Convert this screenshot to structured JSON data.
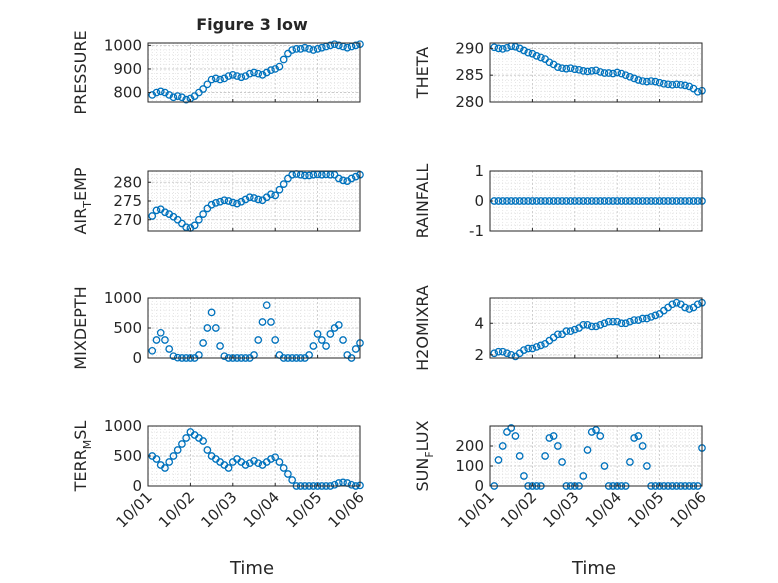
{
  "figure": {
    "title": "Figure 3 low"
  },
  "chart_data": [
    {
      "type": "scatter",
      "ylabel": "PRESSURE",
      "ylim": [
        760,
        1010
      ],
      "yticks": [
        800,
        900,
        1000
      ],
      "ytick_labels": [
        "800",
        "900",
        "1000"
      ],
      "xlim": [
        0,
        5
      ],
      "grid": true,
      "marker": "circle",
      "color": "#0072BD",
      "series": [
        {
          "x": [
            0.1,
            0.2,
            0.3,
            0.4,
            0.5,
            0.6,
            0.7,
            0.8,
            0.9,
            1.0,
            1.1,
            1.2,
            1.3,
            1.4,
            1.5,
            1.6,
            1.7,
            1.8,
            1.9,
            2.0,
            2.1,
            2.2,
            2.3,
            2.4,
            2.5,
            2.6,
            2.7,
            2.8,
            2.9,
            3.0,
            3.1,
            3.2,
            3.3,
            3.4,
            3.5,
            3.6,
            3.7,
            3.8,
            3.9,
            4.0,
            4.1,
            4.2,
            4.3,
            4.4,
            4.5,
            4.6,
            4.7,
            4.8,
            4.9,
            5.0
          ],
          "y": [
            790,
            800,
            805,
            800,
            790,
            780,
            785,
            780,
            770,
            775,
            785,
            800,
            815,
            835,
            855,
            860,
            855,
            860,
            870,
            875,
            870,
            865,
            870,
            880,
            885,
            880,
            875,
            885,
            895,
            900,
            910,
            940,
            965,
            980,
            985,
            985,
            990,
            985,
            980,
            985,
            990,
            995,
            1000,
            1005,
            1000,
            995,
            990,
            995,
            1000,
            1005
          ]
        }
      ]
    },
    {
      "type": "scatter",
      "ylabel": "THETA",
      "ylim": [
        280,
        291
      ],
      "yticks": [
        280,
        285,
        290
      ],
      "ytick_labels": [
        "280",
        "285",
        "290"
      ],
      "xlim": [
        0,
        5
      ],
      "grid": true,
      "marker": "circle",
      "color": "#0072BD",
      "series": [
        {
          "x": [
            0.1,
            0.2,
            0.3,
            0.4,
            0.5,
            0.6,
            0.7,
            0.8,
            0.9,
            1.0,
            1.1,
            1.2,
            1.3,
            1.4,
            1.5,
            1.6,
            1.7,
            1.8,
            1.9,
            2.0,
            2.1,
            2.2,
            2.3,
            2.4,
            2.5,
            2.6,
            2.7,
            2.8,
            2.9,
            3.0,
            3.1,
            3.2,
            3.3,
            3.4,
            3.5,
            3.6,
            3.7,
            3.8,
            3.9,
            4.0,
            4.1,
            4.2,
            4.3,
            4.4,
            4.5,
            4.6,
            4.7,
            4.8,
            4.9,
            5.0
          ],
          "y": [
            290.2,
            290.0,
            289.9,
            290.1,
            290.4,
            290.3,
            290.0,
            289.6,
            289.2,
            289.0,
            288.6,
            288.3,
            288.0,
            287.4,
            287.0,
            286.5,
            286.3,
            286.2,
            286.3,
            286.1,
            286.0,
            285.8,
            285.7,
            285.8,
            285.9,
            285.6,
            285.4,
            285.4,
            285.3,
            285.5,
            285.3,
            285.0,
            284.7,
            284.4,
            284.1,
            283.9,
            283.8,
            283.9,
            283.8,
            283.6,
            283.4,
            283.3,
            283.2,
            283.3,
            283.2,
            283.1,
            282.9,
            282.5,
            281.9,
            282.1
          ]
        }
      ]
    },
    {
      "type": "scatter",
      "ylabel": "AIR",
      "ylabel_sub": "T",
      "ylabel_rest": "EMP",
      "ylim": [
        267,
        283
      ],
      "yticks": [
        270,
        275,
        280
      ],
      "ytick_labels": [
        "270",
        "275",
        "280"
      ],
      "xlim": [
        0,
        5
      ],
      "grid": true,
      "marker": "circle",
      "color": "#0072BD",
      "series": [
        {
          "x": [
            0.1,
            0.2,
            0.3,
            0.4,
            0.5,
            0.6,
            0.7,
            0.8,
            0.9,
            1.0,
            1.1,
            1.2,
            1.3,
            1.4,
            1.5,
            1.6,
            1.7,
            1.8,
            1.9,
            2.0,
            2.1,
            2.2,
            2.3,
            2.4,
            2.5,
            2.6,
            2.7,
            2.8,
            2.9,
            3.0,
            3.1,
            3.2,
            3.3,
            3.4,
            3.5,
            3.6,
            3.7,
            3.8,
            3.9,
            4.0,
            4.1,
            4.2,
            4.3,
            4.4,
            4.5,
            4.6,
            4.7,
            4.8,
            4.9,
            5.0
          ],
          "y": [
            271.0,
            272.5,
            272.8,
            272.0,
            271.5,
            270.8,
            270.0,
            269.0,
            268.0,
            267.8,
            268.5,
            270.0,
            271.5,
            273.0,
            274.0,
            274.5,
            274.8,
            275.2,
            275.0,
            274.6,
            274.3,
            274.8,
            275.4,
            276.0,
            275.8,
            275.4,
            275.2,
            276.0,
            276.8,
            276.5,
            278.0,
            279.5,
            281.0,
            282.0,
            282.2,
            282.0,
            281.8,
            281.8,
            282.0,
            282.1,
            282.0,
            282.1,
            282.0,
            282.0,
            281.0,
            280.5,
            280.3,
            281.0,
            281.5,
            282.0
          ]
        }
      ]
    },
    {
      "type": "scatter",
      "ylabel": "RAINFALL",
      "ylim": [
        -1,
        1
      ],
      "yticks": [
        -1,
        0,
        1
      ],
      "ytick_labels": [
        "-1",
        "0",
        "1"
      ],
      "xlim": [
        0,
        5
      ],
      "grid": true,
      "marker": "circle",
      "color": "#0072BD",
      "series": [
        {
          "x": [
            0.1,
            0.2,
            0.3,
            0.4,
            0.5,
            0.6,
            0.7,
            0.8,
            0.9,
            1.0,
            1.1,
            1.2,
            1.3,
            1.4,
            1.5,
            1.6,
            1.7,
            1.8,
            1.9,
            2.0,
            2.1,
            2.2,
            2.3,
            2.4,
            2.5,
            2.6,
            2.7,
            2.8,
            2.9,
            3.0,
            3.1,
            3.2,
            3.3,
            3.4,
            3.5,
            3.6,
            3.7,
            3.8,
            3.9,
            4.0,
            4.1,
            4.2,
            4.3,
            4.4,
            4.5,
            4.6,
            4.7,
            4.8,
            4.9,
            5.0
          ],
          "y": [
            0,
            0,
            0,
            0,
            0,
            0,
            0,
            0,
            0,
            0,
            0,
            0,
            0,
            0,
            0,
            0,
            0,
            0,
            0,
            0,
            0,
            0,
            0,
            0,
            0,
            0,
            0,
            0,
            0,
            0,
            0,
            0,
            0,
            0,
            0,
            0,
            0,
            0,
            0,
            0,
            0,
            0,
            0,
            0,
            0,
            0,
            0,
            0,
            0,
            0
          ]
        }
      ]
    },
    {
      "type": "scatter",
      "ylabel": "MIXDEPTH",
      "ylim": [
        0,
        1000
      ],
      "yticks": [
        0,
        500,
        1000
      ],
      "ytick_labels": [
        "0",
        "500",
        "1000"
      ],
      "xlim": [
        0,
        5
      ],
      "grid": true,
      "marker": "circle",
      "color": "#0072BD",
      "series": [
        {
          "x": [
            0.1,
            0.2,
            0.3,
            0.4,
            0.5,
            0.6,
            0.7,
            0.8,
            0.9,
            1.0,
            1.1,
            1.2,
            1.3,
            1.4,
            1.5,
            1.6,
            1.7,
            1.8,
            1.9,
            2.0,
            2.1,
            2.2,
            2.3,
            2.4,
            2.5,
            2.6,
            2.7,
            2.8,
            2.9,
            3.0,
            3.1,
            3.2,
            3.3,
            3.4,
            3.5,
            3.6,
            3.7,
            3.8,
            3.9,
            4.0,
            4.1,
            4.2,
            4.3,
            4.4,
            4.5,
            4.6,
            4.7,
            4.8,
            4.9,
            5.0
          ],
          "y": [
            120,
            300,
            420,
            300,
            150,
            30,
            5,
            0,
            0,
            0,
            0,
            50,
            250,
            500,
            760,
            500,
            200,
            30,
            0,
            0,
            0,
            0,
            0,
            0,
            50,
            300,
            600,
            880,
            600,
            300,
            50,
            0,
            0,
            0,
            0,
            0,
            0,
            50,
            200,
            400,
            300,
            200,
            400,
            500,
            550,
            300,
            50,
            0,
            150,
            250
          ]
        }
      ]
    },
    {
      "type": "scatter",
      "ylabel": "H2OMIXRA",
      "ylim": [
        1.8,
        5.6
      ],
      "yticks": [
        2,
        4
      ],
      "ytick_labels": [
        "2",
        "4"
      ],
      "xlim": [
        0,
        5
      ],
      "grid": true,
      "marker": "circle",
      "color": "#0072BD",
      "series": [
        {
          "x": [
            0.1,
            0.2,
            0.3,
            0.4,
            0.5,
            0.6,
            0.7,
            0.8,
            0.9,
            1.0,
            1.1,
            1.2,
            1.3,
            1.4,
            1.5,
            1.6,
            1.7,
            1.8,
            1.9,
            2.0,
            2.1,
            2.2,
            2.3,
            2.4,
            2.5,
            2.6,
            2.7,
            2.8,
            2.9,
            3.0,
            3.1,
            3.2,
            3.3,
            3.4,
            3.5,
            3.6,
            3.7,
            3.8,
            3.9,
            4.0,
            4.1,
            4.2,
            4.3,
            4.4,
            4.5,
            4.6,
            4.7,
            4.8,
            4.9,
            5.0
          ],
          "y": [
            2.1,
            2.2,
            2.2,
            2.1,
            2.0,
            1.9,
            2.1,
            2.3,
            2.4,
            2.4,
            2.5,
            2.6,
            2.7,
            2.9,
            3.1,
            3.3,
            3.3,
            3.5,
            3.5,
            3.6,
            3.7,
            3.9,
            3.9,
            3.8,
            3.8,
            3.9,
            4.0,
            4.1,
            4.1,
            4.1,
            4.0,
            4.0,
            4.1,
            4.2,
            4.2,
            4.3,
            4.3,
            4.4,
            4.5,
            4.6,
            4.8,
            5.0,
            5.2,
            5.3,
            5.2,
            5.0,
            4.9,
            5.0,
            5.2,
            5.3
          ]
        }
      ]
    },
    {
      "type": "scatter",
      "ylabel": "TERR",
      "ylabel_sub": "M",
      "ylabel_rest": "SL",
      "ylim": [
        0,
        1000
      ],
      "yticks": [
        0,
        500,
        1000
      ],
      "ytick_labels": [
        "0",
        "500",
        "1000"
      ],
      "xlim": [
        0,
        5
      ],
      "grid": true,
      "marker": "circle",
      "color": "#0072BD",
      "series": [
        {
          "x": [
            0.1,
            0.2,
            0.3,
            0.4,
            0.5,
            0.6,
            0.7,
            0.8,
            0.9,
            1.0,
            1.1,
            1.2,
            1.3,
            1.4,
            1.5,
            1.6,
            1.7,
            1.8,
            1.9,
            2.0,
            2.1,
            2.2,
            2.3,
            2.4,
            2.5,
            2.6,
            2.7,
            2.8,
            2.9,
            3.0,
            3.1,
            3.2,
            3.3,
            3.4,
            3.5,
            3.6,
            3.7,
            3.8,
            3.9,
            4.0,
            4.1,
            4.2,
            4.3,
            4.4,
            4.5,
            4.6,
            4.7,
            4.8,
            4.9,
            5.0
          ],
          "y": [
            500,
            450,
            350,
            300,
            400,
            500,
            600,
            700,
            800,
            900,
            850,
            800,
            750,
            600,
            500,
            450,
            400,
            350,
            300,
            400,
            450,
            400,
            350,
            380,
            420,
            380,
            350,
            400,
            450,
            480,
            400,
            300,
            200,
            100,
            0,
            0,
            0,
            0,
            0,
            0,
            0,
            0,
            0,
            20,
            50,
            60,
            50,
            20,
            0,
            10
          ]
        }
      ]
    },
    {
      "type": "scatter",
      "ylabel": "SUN",
      "ylabel_sub": "F",
      "ylabel_rest": "LUX",
      "ylim": [
        0,
        300
      ],
      "yticks": [
        0,
        100,
        200
      ],
      "ytick_labels": [
        "0",
        "100",
        "200"
      ],
      "xlim": [
        0,
        5
      ],
      "grid": true,
      "marker": "circle",
      "color": "#0072BD",
      "series": [
        {
          "x": [
            0.1,
            0.2,
            0.3,
            0.4,
            0.5,
            0.6,
            0.7,
            0.8,
            0.9,
            1.0,
            1.1,
            1.2,
            1.3,
            1.4,
            1.5,
            1.6,
            1.7,
            1.8,
            1.9,
            2.0,
            2.1,
            2.2,
            2.3,
            2.4,
            2.5,
            2.6,
            2.7,
            2.8,
            2.9,
            3.0,
            3.1,
            3.2,
            3.3,
            3.4,
            3.5,
            3.6,
            3.7,
            3.8,
            3.9,
            4.0,
            4.1,
            4.2,
            4.3,
            4.4,
            4.5,
            4.6,
            4.7,
            4.8,
            4.9,
            5.0
          ],
          "y": [
            0,
            130,
            200,
            270,
            290,
            250,
            150,
            50,
            0,
            0,
            0,
            0,
            150,
            240,
            250,
            200,
            120,
            0,
            0,
            0,
            0,
            50,
            180,
            270,
            280,
            250,
            100,
            0,
            0,
            0,
            0,
            0,
            120,
            240,
            250,
            200,
            100,
            0,
            0,
            0,
            0,
            0,
            0,
            0,
            0,
            0,
            0,
            0,
            0,
            190
          ]
        }
      ]
    }
  ],
  "x_axis": {
    "ticks": [
      0,
      1,
      2,
      3,
      4,
      5
    ],
    "tick_labels": [
      "10/01",
      "10/02",
      "10/03",
      "10/04",
      "10/05",
      "10/06"
    ],
    "label": "Time"
  }
}
